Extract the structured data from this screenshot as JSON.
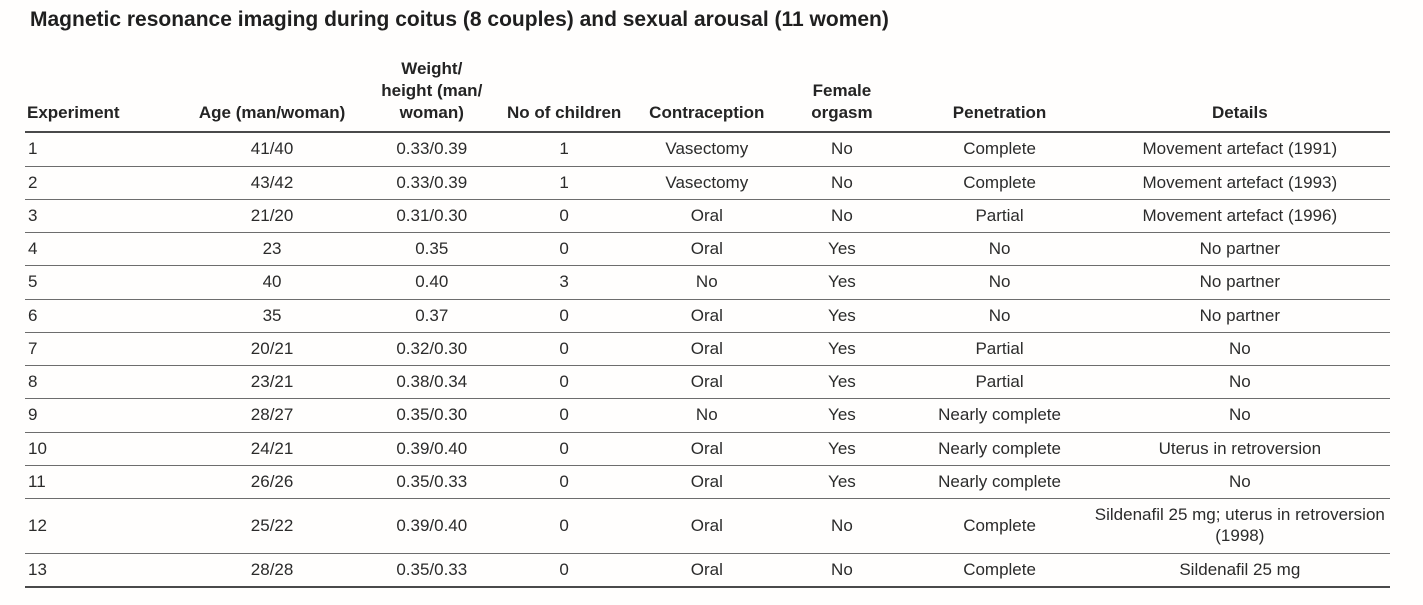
{
  "page": {
    "title": "Magnetic resonance imaging during coitus (8 couples) and sexual arousal (11 women)"
  },
  "table": {
    "columns": [
      {
        "id": "experiment",
        "label": "Experiment",
        "align": "left"
      },
      {
        "id": "age",
        "label": "Age (man/woman)",
        "align": "center"
      },
      {
        "id": "weight_height",
        "label": "Weight/\nheight (man/\nwoman)",
        "align": "center"
      },
      {
        "id": "children",
        "label": "No of children",
        "align": "center"
      },
      {
        "id": "contraception",
        "label": "Contraception",
        "align": "center"
      },
      {
        "id": "female_orgasm",
        "label": "Female\norgasm",
        "align": "center"
      },
      {
        "id": "penetration",
        "label": "Penetration",
        "align": "center"
      },
      {
        "id": "details",
        "label": "Details",
        "align": "center"
      }
    ],
    "rows": [
      [
        "1",
        "41/40",
        "0.33/0.39",
        "1",
        "Vasectomy",
        "No",
        "Complete",
        "Movement artefact (1991)"
      ],
      [
        "2",
        "43/42",
        "0.33/0.39",
        "1",
        "Vasectomy",
        "No",
        "Complete",
        "Movement artefact (1993)"
      ],
      [
        "3",
        "21/20",
        "0.31/0.30",
        "0",
        "Oral",
        "No",
        "Partial",
        "Movement artefact (1996)"
      ],
      [
        "4",
        "23",
        "0.35",
        "0",
        "Oral",
        "Yes",
        "No",
        "No partner"
      ],
      [
        "5",
        "40",
        "0.40",
        "3",
        "No",
        "Yes",
        "No",
        "No partner"
      ],
      [
        "6",
        "35",
        "0.37",
        "0",
        "Oral",
        "Yes",
        "No",
        "No partner"
      ],
      [
        "7",
        "20/21",
        "0.32/0.30",
        "0",
        "Oral",
        "Yes",
        "Partial",
        "No"
      ],
      [
        "8",
        "23/21",
        "0.38/0.34",
        "0",
        "Oral",
        "Yes",
        "Partial",
        "No"
      ],
      [
        "9",
        "28/27",
        "0.35/0.30",
        "0",
        "No",
        "Yes",
        "Nearly complete",
        "No"
      ],
      [
        "10",
        "24/21",
        "0.39/0.40",
        "0",
        "Oral",
        "Yes",
        "Nearly complete",
        "Uterus in retroversion"
      ],
      [
        "11",
        "26/26",
        "0.35/0.33",
        "0",
        "Oral",
        "Yes",
        "Nearly complete",
        "No"
      ],
      [
        "12",
        "25/22",
        "0.39/0.40",
        "0",
        "Oral",
        "No",
        "Complete",
        "Sildenafil 25 mg; uterus in retroversion (1998)"
      ],
      [
        "13",
        "28/28",
        "0.35/0.33",
        "0",
        "Oral",
        "No",
        "Complete",
        "Sildenafil 25 mg"
      ]
    ]
  },
  "colors": {
    "background": "#fffefd",
    "text": "#2b2b2b",
    "rule_heavy": "#4a4a4a",
    "rule_light": "#6d6d6d"
  }
}
